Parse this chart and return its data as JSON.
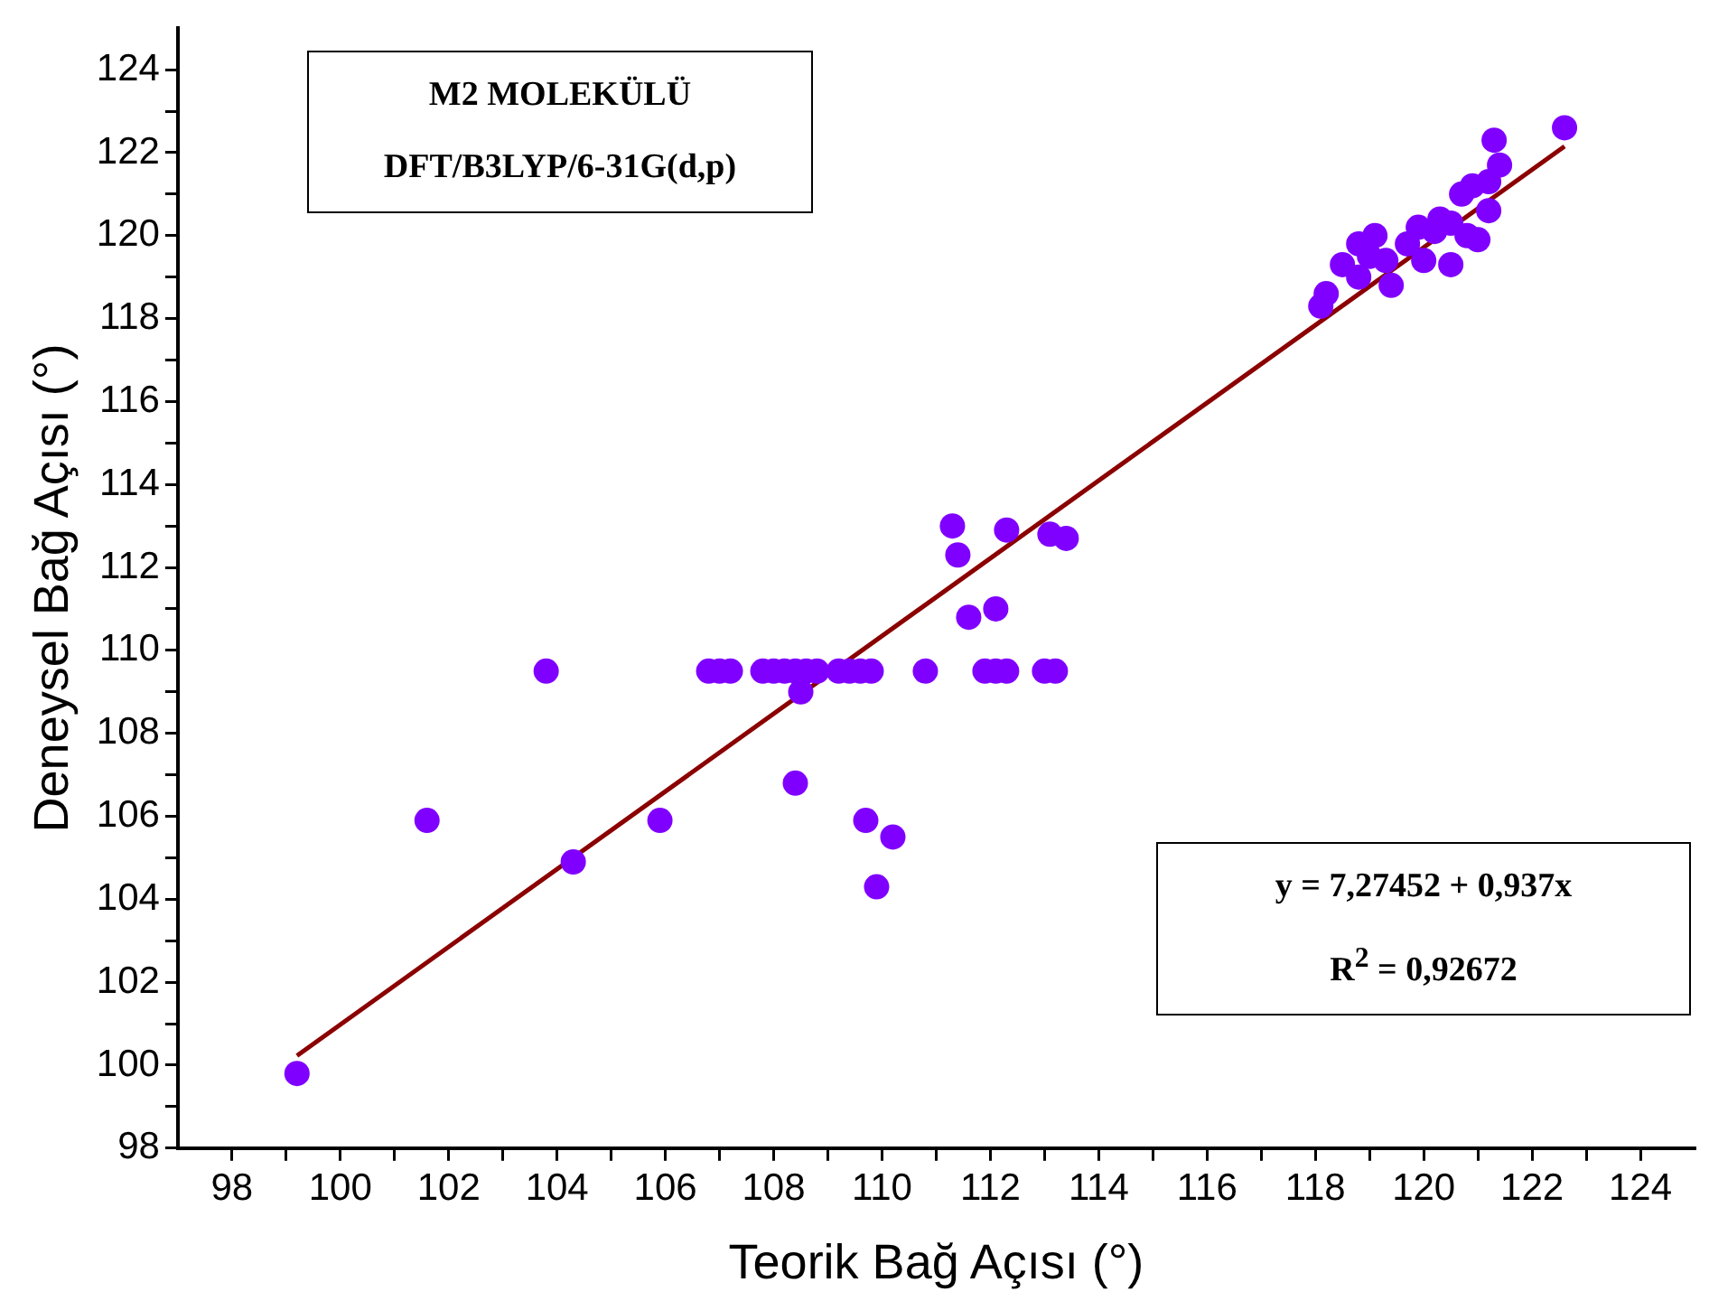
{
  "chart_data": {
    "type": "scatter",
    "xlabel": "Teorik Bağ Açısı (°)",
    "ylabel": "Deneysel Bağ Açısı (°)",
    "annotations": [
      "M2 MOLEKÜLÜ",
      "DFT/B3LYP/6-31G(d,p)",
      "y = 7,27452 + 0,937x",
      "R$^{2}$ = 0,92672"
    ],
    "xlim": [
      97,
      125
    ],
    "ylim": [
      98,
      125
    ],
    "xticks": [
      98,
      {
        "value": 99,
        "label": null
      },
      100,
      {
        "value": 101,
        "label": null
      },
      102,
      {
        "value": 103,
        "label": null
      },
      104,
      {
        "value": 105,
        "label": null
      },
      106,
      {
        "value": 107,
        "label": null
      },
      108,
      {
        "value": 109,
        "label": null
      },
      110,
      {
        "value": 111,
        "label": null
      },
      112,
      {
        "value": 113,
        "label": null
      },
      114,
      {
        "value": 115,
        "label": null
      },
      116,
      {
        "value": 117,
        "label": null
      },
      118,
      {
        "value": 119,
        "label": null
      },
      120,
      {
        "value": 121,
        "label": null
      },
      122,
      {
        "value": 123,
        "label": null
      },
      124
    ],
    "yticks": [
      98,
      {
        "value": 99,
        "label": null
      },
      100,
      {
        "value": 101,
        "label": null
      },
      102,
      {
        "value": 103,
        "label": null
      },
      104,
      {
        "value": 105,
        "label": null
      },
      106,
      {
        "value": 107,
        "label": null
      },
      108,
      {
        "value": 109,
        "label": null
      },
      110,
      {
        "value": 111,
        "label": null
      },
      112,
      {
        "value": 113,
        "label": null
      },
      114,
      {
        "value": 115,
        "label": null
      },
      116,
      {
        "value": 117,
        "label": null
      },
      118,
      {
        "value": 119,
        "label": null
      },
      120,
      {
        "value": 121,
        "label": null
      },
      122,
      {
        "value": 123,
        "label": null
      },
      124
    ],
    "grid": false,
    "legend": false,
    "marker": "circle",
    "series": [
      {
        "type": "scatter",
        "color": "#8000ff",
        "x": [
          99.2,
          101.6,
          103.8,
          104.3,
          105.9,
          106.8,
          107.0,
          107.2,
          107.8,
          108.0,
          108.2,
          108.4,
          108.6,
          108.8,
          108.5,
          108.4,
          109.2,
          109.4,
          109.6,
          109.8,
          109.7,
          109.9,
          110.2,
          110.8,
          111.3,
          111.4,
          111.6,
          111.9,
          112.1,
          112.1,
          112.3,
          112.3,
          113.0,
          113.2,
          113.1,
          113.4,
          118.1,
          118.2,
          118.5,
          118.8,
          118.8,
          119.0,
          119.1,
          119.3,
          119.4,
          119.7,
          119.9,
          120.0,
          120.2,
          120.3,
          120.5,
          120.5,
          120.7,
          120.8,
          120.9,
          121.0,
          121.2,
          121.2,
          121.3,
          121.4,
          122.6
        ],
        "values": [
          99.8,
          105.9,
          109.5,
          104.9,
          105.9,
          109.5,
          109.5,
          109.5,
          109.5,
          109.5,
          109.5,
          109.5,
          109.5,
          109.5,
          109.0,
          106.8,
          109.5,
          109.5,
          109.5,
          109.5,
          105.9,
          104.3,
          105.5,
          109.5,
          113.0,
          112.3,
          110.8,
          109.5,
          111.0,
          109.5,
          109.5,
          112.9,
          109.5,
          109.5,
          112.8,
          112.7,
          118.3,
          118.6,
          119.3,
          119.0,
          119.8,
          119.5,
          120.0,
          119.4,
          118.8,
          119.8,
          120.2,
          119.4,
          120.1,
          120.4,
          119.3,
          120.3,
          121.0,
          120.0,
          121.2,
          119.9,
          120.6,
          121.3,
          122.3,
          121.7,
          122.6
        ]
      },
      {
        "type": "line",
        "color": "#8b0000",
        "x": [
          99.2,
          122.6
        ],
        "values": [
          100.23,
          122.15
        ],
        "marker": "none"
      }
    ]
  }
}
